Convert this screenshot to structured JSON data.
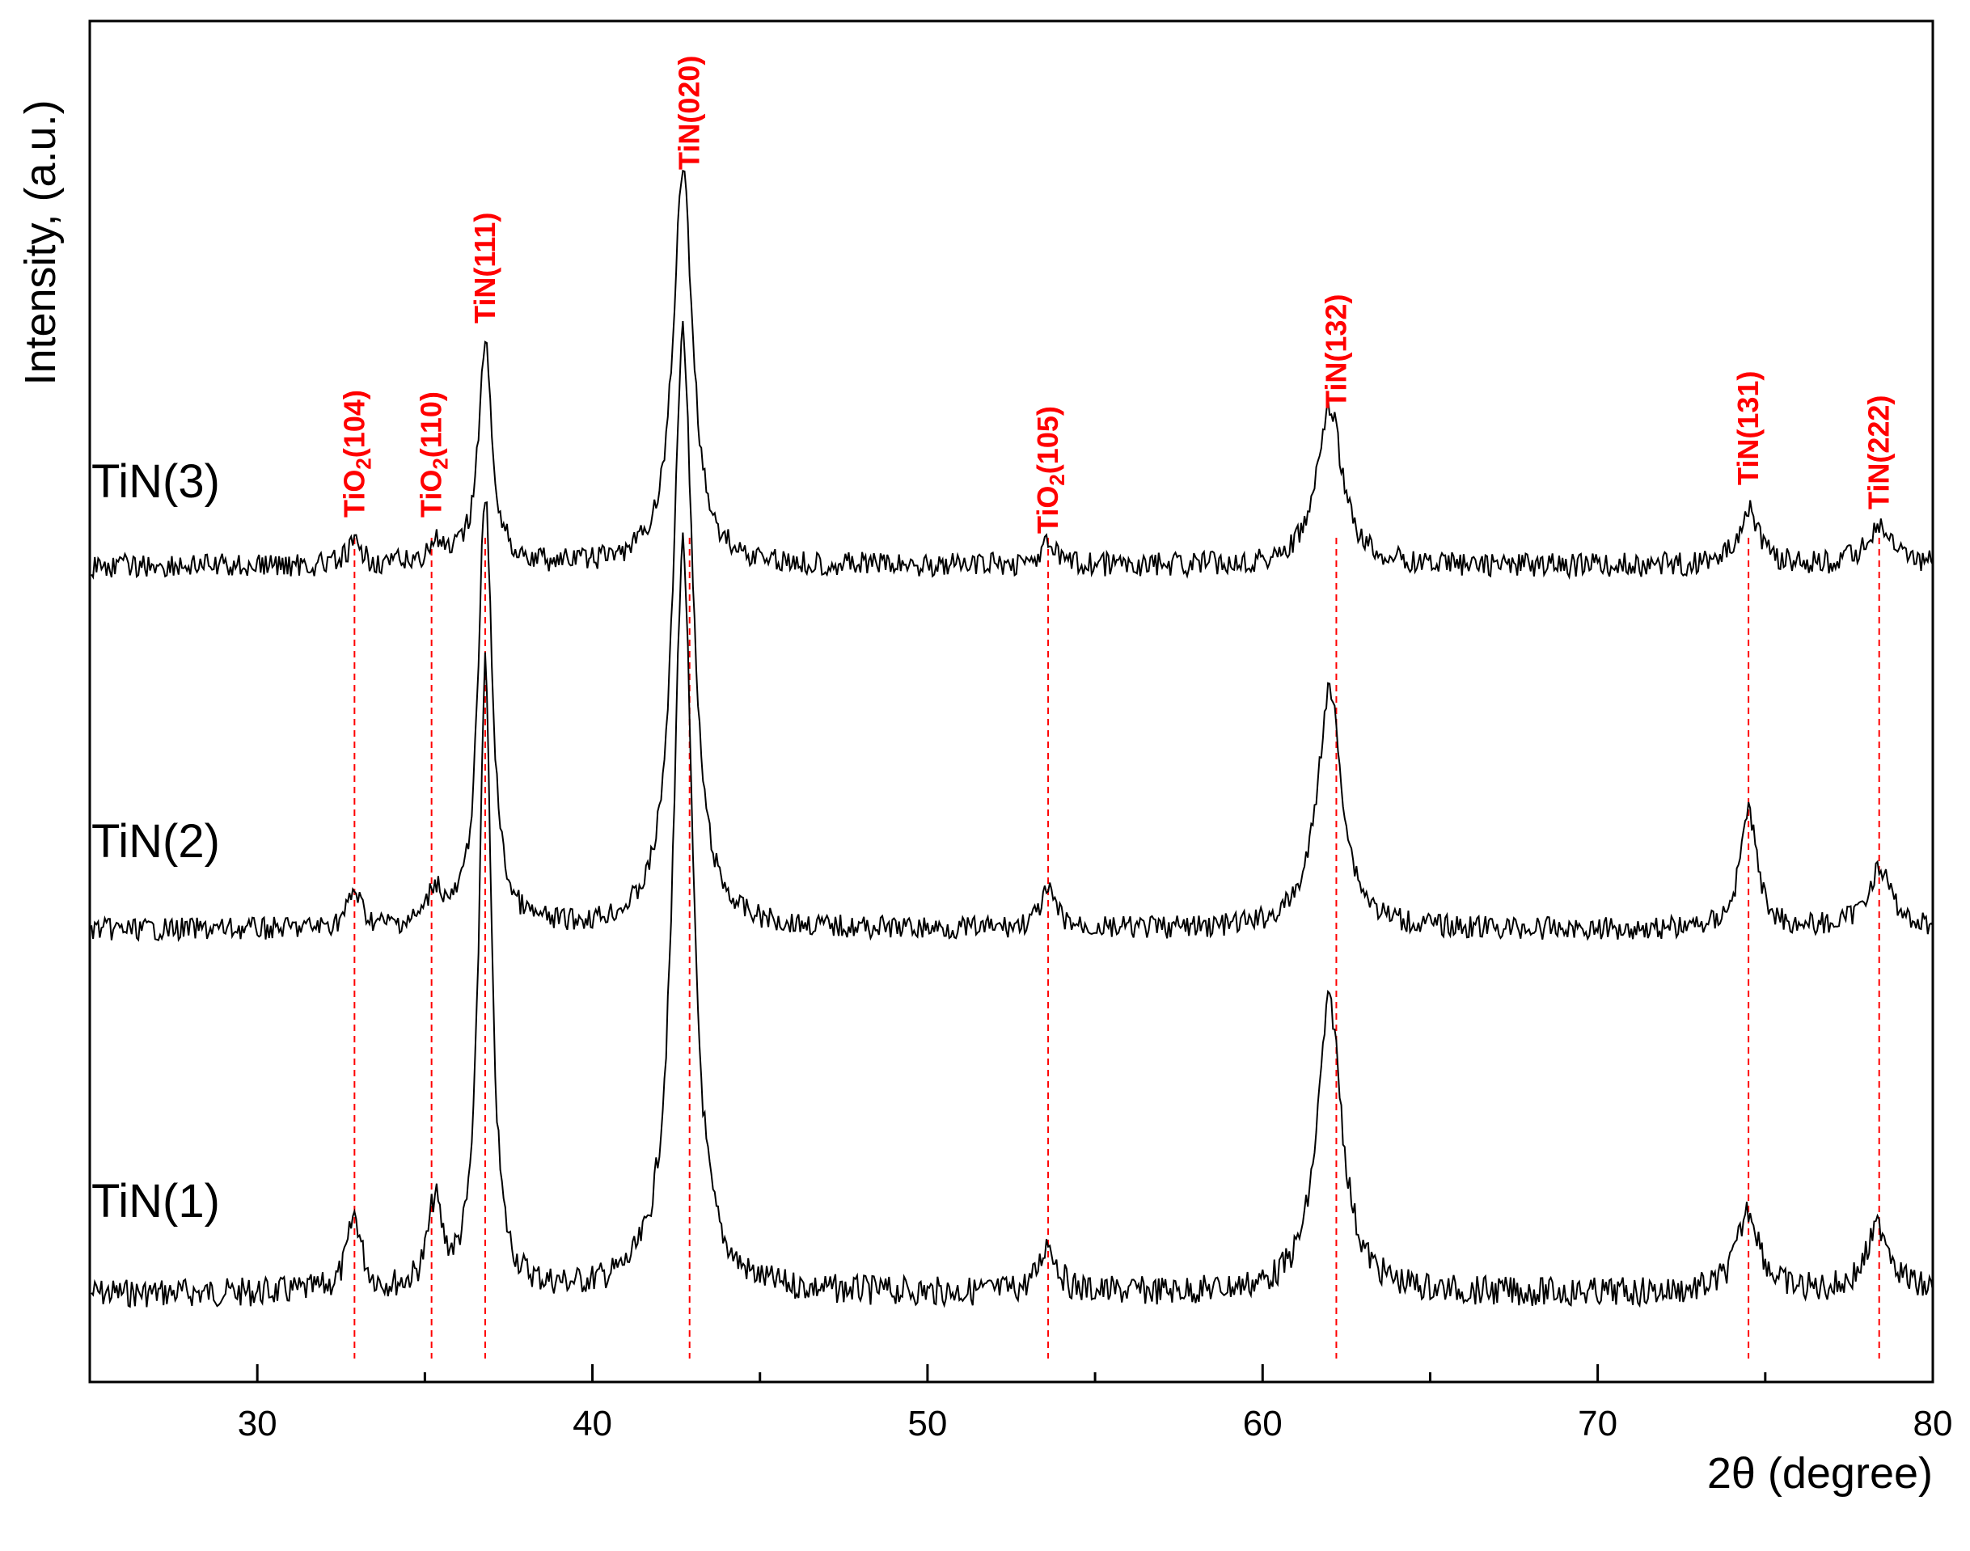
{
  "chart_data": {
    "type": "line",
    "xlabel": "2θ (degree)",
    "ylabel": "Intensity, (a.u.)",
    "xlim": [
      25,
      80
    ],
    "xticks": [
      30,
      40,
      50,
      60,
      70,
      80
    ],
    "grid": false,
    "series": [
      {
        "name": "TiN(1)",
        "baseline": 1,
        "peaks": [
          [
            32.9,
            0.09,
            0.25
          ],
          [
            35.3,
            0.1,
            0.25
          ],
          [
            36.8,
            0.75,
            0.22
          ],
          [
            42.7,
            0.9,
            0.35
          ],
          [
            53.6,
            0.06,
            0.3
          ],
          [
            62.0,
            0.35,
            0.45
          ],
          [
            74.5,
            0.1,
            0.4
          ],
          [
            78.4,
            0.08,
            0.45
          ]
        ]
      },
      {
        "name": "TiN(2)",
        "baseline": 1,
        "peaks": [
          [
            32.9,
            0.06,
            0.25
          ],
          [
            35.3,
            0.06,
            0.25
          ],
          [
            36.8,
            0.72,
            0.25
          ],
          [
            42.7,
            1.0,
            0.35
          ],
          [
            53.6,
            0.06,
            0.3
          ],
          [
            62.0,
            0.4,
            0.45
          ],
          [
            74.5,
            0.2,
            0.3
          ],
          [
            78.4,
            0.1,
            0.45
          ]
        ]
      },
      {
        "name": "TiN(3)",
        "baseline": 1,
        "peaks": [
          [
            32.9,
            0.05,
            0.25
          ],
          [
            35.3,
            0.05,
            0.25
          ],
          [
            36.8,
            0.55,
            0.25
          ],
          [
            42.7,
            1.0,
            0.35
          ],
          [
            53.6,
            0.05,
            0.3
          ],
          [
            62.0,
            0.4,
            0.45
          ],
          [
            74.5,
            0.15,
            0.35
          ],
          [
            78.4,
            0.1,
            0.45
          ]
        ]
      }
    ],
    "annotations": [
      {
        "label": "TiO2(104)",
        "main": "TiO",
        "sub": "2",
        "rest": "(104)",
        "x": 32.9,
        "series": 3
      },
      {
        "label": "TiO2(110)",
        "main": "TiO",
        "sub": "2",
        "rest": "(110)",
        "x": 35.2,
        "series": 3
      },
      {
        "label": "TiN(111)",
        "main": "TiN(111)",
        "sub": "",
        "rest": "",
        "x": 36.8,
        "series": 3
      },
      {
        "label": "TiN(020)",
        "main": "TiN(020)",
        "sub": "",
        "rest": "",
        "x": 42.9,
        "series": 3
      },
      {
        "label": "TiO2(105)",
        "main": "TiO",
        "sub": "2",
        "rest": "(105)",
        "x": 53.6,
        "series": 3
      },
      {
        "label": "TiN(132)",
        "main": "TiN(132)",
        "sub": "",
        "rest": "",
        "x": 62.2,
        "series": 3
      },
      {
        "label": "TiN(131)",
        "main": "TiN(131)",
        "sub": "",
        "rest": "",
        "x": 74.5,
        "series": 3
      },
      {
        "label": "TiN(222)",
        "main": "TiN(222)",
        "sub": "",
        "rest": "",
        "x": 78.4,
        "series": 3
      }
    ],
    "colors": {
      "trace": "#000000",
      "reference": "#ff0000"
    }
  }
}
